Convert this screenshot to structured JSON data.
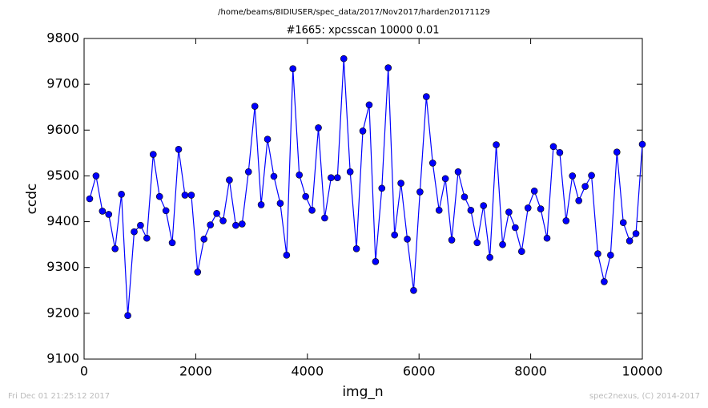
{
  "chart_data": {
    "type": "line",
    "suptitle": "/home/beams/8IDIUSER/spec_data/2017/Nov2017/harden20171129",
    "title": "#1665: xpcsscan 10000 0.01",
    "xlabel": "img_n",
    "ylabel": "ccdc",
    "footer_left": "Fri Dec 01 21:25:12 2017",
    "footer_right": "spec2nexus, (C) 2014-2017",
    "x": [
      100,
      214,
      328,
      441,
      555,
      669,
      783,
      897,
      1010,
      1124,
      1238,
      1352,
      1466,
      1579,
      1693,
      1807,
      1921,
      2034,
      2148,
      2262,
      2376,
      2490,
      2603,
      2717,
      2831,
      2945,
      3059,
      3172,
      3286,
      3400,
      3514,
      3628,
      3741,
      3855,
      3969,
      4083,
      4197,
      4310,
      4424,
      4538,
      4652,
      4766,
      4879,
      4993,
      5107,
      5221,
      5334,
      5448,
      5562,
      5676,
      5790,
      5903,
      6017,
      6131,
      6245,
      6359,
      6472,
      6586,
      6700,
      6814,
      6928,
      7041,
      7155,
      7269,
      7383,
      7497,
      7610,
      7724,
      7838,
      7952,
      8066,
      8179,
      8293,
      8407,
      8521,
      8634,
      8748,
      8862,
      8976,
      9090,
      9203,
      9317,
      9431,
      9545,
      9659,
      9772,
      9886,
      10000
    ],
    "series": [
      {
        "color": "#0000ff",
        "values": [
          9450,
          9500,
          9423,
          9416,
          9341,
          9460,
          9195,
          9378,
          9392,
          9364,
          9547,
          9455,
          9424,
          9354,
          9558,
          9458,
          9458,
          9290,
          9362,
          9393,
          9418,
          9402,
          9491,
          9392,
          9395,
          9509,
          9652,
          9437,
          9580,
          9499,
          9440,
          9327,
          9734,
          9502,
          9455,
          9425,
          9605,
          9408,
          9496,
          9496,
          9756,
          9509,
          9341,
          9598,
          9655,
          9313,
          9473,
          9736,
          9371,
          9484,
          9362,
          9250,
          9465,
          9673,
          9528,
          9425,
          9494,
          9360,
          9509,
          9454,
          9425,
          9354,
          9435,
          9322,
          9568,
          9350,
          9421,
          9387,
          9335,
          9430,
          9467,
          9428,
          9364,
          9564,
          9551,
          9402,
          9500,
          9446,
          9477,
          9501,
          9330,
          9269,
          9327,
          9552,
          9398,
          9358,
          9374,
          9569
        ]
      }
    ],
    "xlim": [
      0,
      10000
    ],
    "xticks": [
      0,
      2000,
      4000,
      6000,
      8000,
      10000
    ],
    "ylim": [
      9100,
      9800
    ],
    "yticks": [
      9100,
      9200,
      9300,
      9400,
      9500,
      9600,
      9700,
      9800
    ],
    "grid": false
  }
}
